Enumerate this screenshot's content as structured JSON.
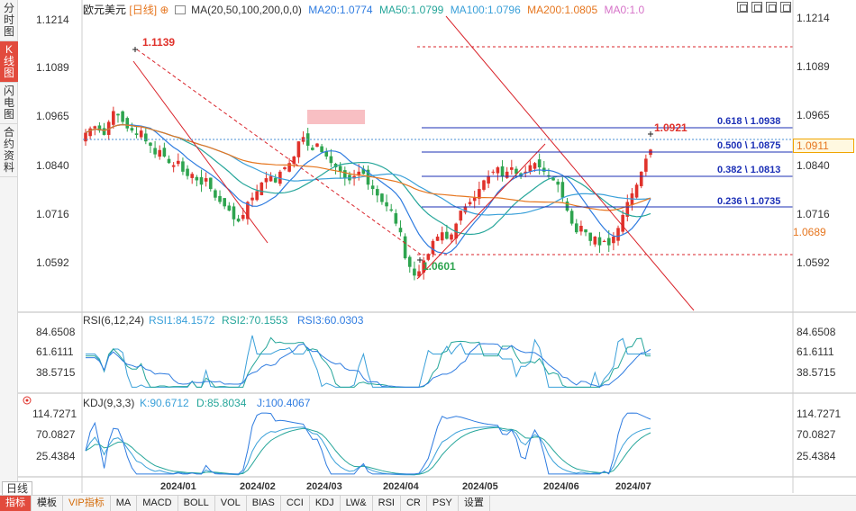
{
  "left_tabs": [
    {
      "label": "分时图",
      "active": false
    },
    {
      "label": "K线图",
      "active": true
    },
    {
      "label": "闪电图",
      "active": false
    },
    {
      "label": "合约资料",
      "active": false
    }
  ],
  "header": {
    "symbol": "欧元美元",
    "period": "[日线]",
    "ma_title": "MA(20,50,100,200,0,0)",
    "ma20": "MA20:1.0774",
    "ma50": "MA50:1.0799",
    "ma100": "MA100:1.0796",
    "ma200": "MA200:1.0805",
    "ma0": "MA0:1.0"
  },
  "colors": {
    "ma20": "#2f7ce0",
    "ma50": "#26a69a",
    "ma100": "#3aa0d9",
    "ma200": "#e6761f",
    "ma0": "#d672c8",
    "up": "#e0322b",
    "down": "#2ea44f",
    "fib": "#1b2fb6",
    "trend": "#d9232a"
  },
  "price_axis": [
    "1.1214",
    "1.1089",
    "1.0965",
    "1.0840",
    "1.0716",
    "1.0592"
  ],
  "price_tags": {
    "current": "1.0911",
    "level": "1.0689"
  },
  "annotations": {
    "high": "1.1139",
    "low": "1.0601",
    "recent_high": "1.0921"
  },
  "fib_levels": [
    "0.618 \\ 1.0938",
    "0.500 \\ 1.0875",
    "0.382 \\ 1.0813",
    "0.236 \\ 1.0735"
  ],
  "rsi": {
    "title": "RSI(6,12,24)",
    "rsi1": "RSI1:84.1572",
    "rsi2": "RSI2:70.1553",
    "rsi3": "RSI3:60.0303",
    "axis": [
      "84.6508",
      "61.6111",
      "38.5715"
    ]
  },
  "kdj": {
    "title": "KDJ(9,3,3)",
    "k": "K:90.6712",
    "d": "D:85.8034",
    "j": "J:100.4067",
    "axis": [
      "114.7271",
      "70.0827",
      "25.4384"
    ]
  },
  "dates": [
    "2024/01",
    "2024/02",
    "2024/03",
    "2024/04",
    "2024/05",
    "2024/06",
    "2024/07"
  ],
  "period_label": "日线",
  "bottom_tabs": [
    {
      "label": "指标",
      "active": true
    },
    {
      "label": "模板"
    },
    {
      "label": "VIP指标",
      "vip": true
    },
    {
      "label": "MA"
    },
    {
      "label": "MACD"
    },
    {
      "label": "BOLL"
    },
    {
      "label": "VOL"
    },
    {
      "label": "BIAS"
    },
    {
      "label": "CCI"
    },
    {
      "label": "KDJ"
    },
    {
      "label": "LW&"
    },
    {
      "label": "RSI"
    },
    {
      "label": "CR"
    },
    {
      "label": "PSY"
    },
    {
      "label": "设置"
    }
  ],
  "chart_data": {
    "type": "candlestick",
    "y_range": [
      1.055,
      1.124
    ],
    "closes": [
      1.095,
      1.096,
      1.0965,
      1.0955,
      1.0945,
      1.0975,
      1.1,
      1.099,
      1.0975,
      1.096,
      1.0955,
      1.0945,
      1.0955,
      1.093,
      1.092,
      1.09,
      1.091,
      1.0895,
      1.088,
      1.0875,
      1.0885,
      1.086,
      1.085,
      1.0855,
      1.084,
      1.083,
      1.0845,
      1.082,
      1.08,
      1.079,
      1.078,
      1.077,
      1.075,
      1.0745,
      1.076,
      1.079,
      1.08,
      1.0815,
      1.0835,
      1.0845,
      1.085,
      1.0835,
      1.086,
      1.087,
      1.088,
      1.0895,
      1.093,
      1.094,
      1.092,
      1.091,
      1.0925,
      1.0905,
      1.0895,
      1.088,
      1.087,
      1.086,
      1.0845,
      1.084,
      1.085,
      1.086,
      1.0855,
      1.083,
      1.082,
      1.0805,
      1.079,
      1.078,
      1.077,
      1.074,
      1.072,
      1.066,
      1.064,
      1.062,
      1.063,
      1.0655,
      1.067,
      1.07,
      1.071,
      1.072,
      1.0705,
      1.0715,
      1.074,
      1.077,
      1.078,
      1.079,
      1.08,
      1.082,
      1.084,
      1.085,
      1.086,
      1.087,
      1.085,
      1.086,
      1.087,
      1.0855,
      1.085,
      1.086,
      1.0875,
      1.088,
      1.087,
      1.086,
      1.085,
      1.084,
      1.083,
      1.08,
      1.077,
      1.074,
      1.072,
      1.0735,
      1.072,
      1.07,
      1.071,
      1.069,
      1.07,
      1.069,
      1.071,
      1.073,
      1.076,
      1.079,
      1.081,
      1.083,
      1.086,
      1.089,
      1.0911
    ],
    "rsi_range": [
      20,
      100
    ],
    "kdj_range": [
      0,
      130
    ]
  }
}
